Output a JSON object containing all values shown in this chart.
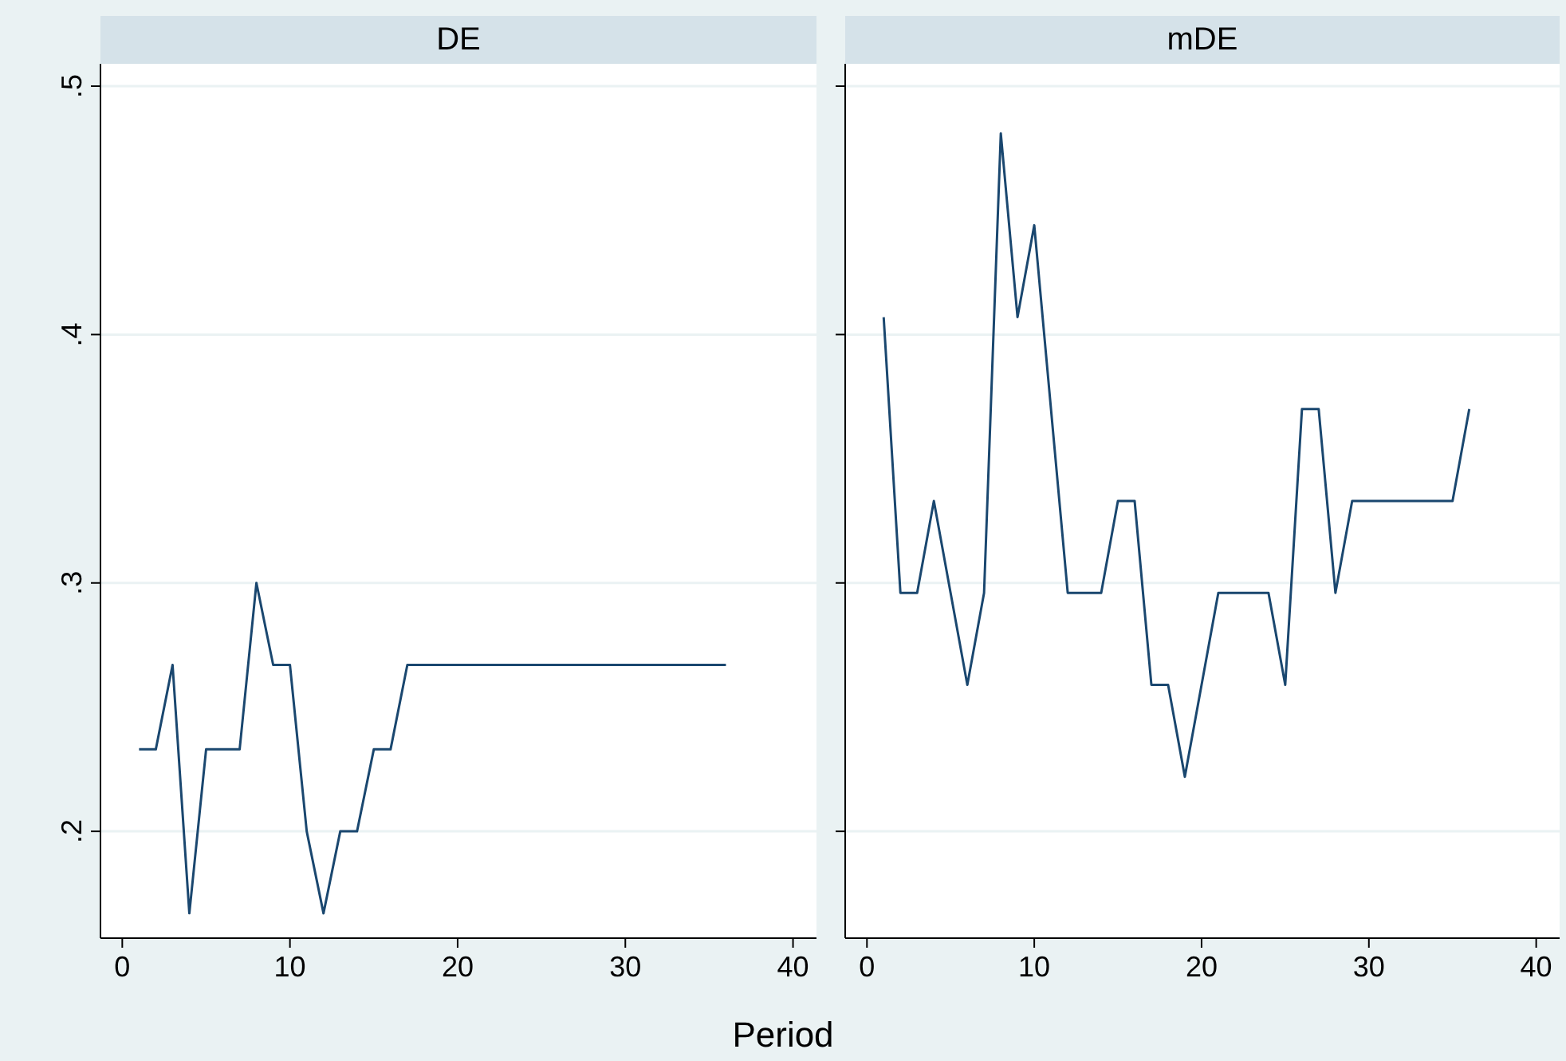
{
  "chart_data": [
    {
      "type": "line",
      "title": "DE",
      "xlabel": "Period",
      "x": [
        1,
        2,
        3,
        4,
        5,
        6,
        7,
        8,
        9,
        10,
        11,
        12,
        13,
        14,
        15,
        16,
        17,
        18,
        19,
        20,
        21,
        22,
        23,
        24,
        25,
        26,
        27,
        28,
        29,
        30,
        31,
        32,
        33,
        34,
        35,
        36
      ],
      "series": [
        {
          "color": "#1a476f",
          "values": [
            0.233,
            0.233,
            0.267,
            0.167,
            0.233,
            0.233,
            0.233,
            0.3,
            0.267,
            0.267,
            0.2,
            0.167,
            0.2,
            0.2,
            0.233,
            0.233,
            0.267,
            0.267,
            0.267,
            0.267,
            0.267,
            0.267,
            0.267,
            0.267,
            0.267,
            0.267,
            0.267,
            0.267,
            0.267,
            0.267,
            0.267,
            0.267,
            0.267,
            0.267,
            0.267,
            0.267
          ]
        }
      ],
      "xlim": [
        -1.3,
        41.4
      ],
      "xticks": [
        0,
        10,
        20,
        30,
        40
      ],
      "ylim": [
        0.157,
        0.509
      ],
      "yticks": [
        {
          "value": 0.2,
          "label": ".2"
        },
        {
          "value": 0.3,
          "label": ".3"
        },
        {
          "value": 0.4,
          "label": ".4"
        },
        {
          "value": 0.5,
          "label": ".5"
        }
      ],
      "grid": "y",
      "marker": "none",
      "line_style": "solid"
    },
    {
      "type": "line",
      "title": "mDE",
      "x": [
        1,
        2,
        3,
        4,
        5,
        6,
        7,
        8,
        9,
        10,
        11,
        12,
        13,
        14,
        15,
        16,
        17,
        18,
        19,
        20,
        21,
        22,
        23,
        24,
        25,
        26,
        27,
        28,
        29,
        30,
        31,
        32,
        33,
        34,
        35,
        36
      ],
      "series": [
        {
          "color": "#1a476f",
          "values": [
            0.407,
            0.296,
            0.296,
            0.333,
            0.296,
            0.259,
            0.296,
            0.481,
            0.407,
            0.444,
            0.37,
            0.296,
            0.296,
            0.296,
            0.333,
            0.333,
            0.259,
            0.259,
            0.222,
            0.259,
            0.296,
            0.296,
            0.296,
            0.296,
            0.259,
            0.37,
            0.37,
            0.296,
            0.333,
            0.333,
            0.333,
            0.333,
            0.333,
            0.333,
            0.333,
            0.37
          ]
        }
      ],
      "xlim": [
        -1.3,
        41.4
      ],
      "xticks": [
        0,
        10,
        20,
        30,
        40
      ],
      "ylim": [
        0.157,
        0.509
      ],
      "yticks": [
        {
          "value": 0.2,
          "label": null
        },
        {
          "value": 0.3,
          "label": null
        },
        {
          "value": 0.4,
          "label": null
        },
        {
          "value": 0.5,
          "label": null
        }
      ],
      "grid": "y",
      "marker": "none",
      "line_style": "solid",
      "tick_labels": "x"
    }
  ]
}
